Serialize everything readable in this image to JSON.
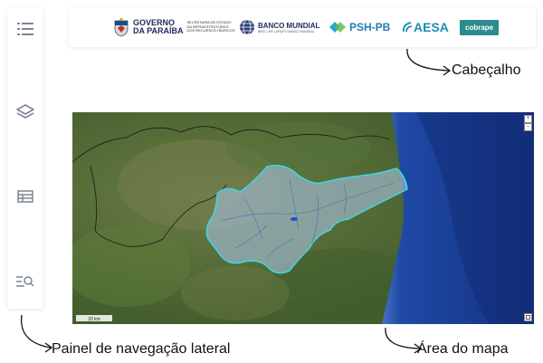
{
  "sidebar": {
    "items": [
      {
        "icon": "list-icon"
      },
      {
        "icon": "layers-icon"
      },
      {
        "icon": "table-icon"
      },
      {
        "icon": "search-list-icon"
      }
    ]
  },
  "header": {
    "logos": {
      "governo_line1": "GOVERNO",
      "governo_line2": "DA PARAÍBA",
      "secretaria_lines": [
        "SECRETARIA DE ESTADO",
        "DA INFRAESTRUTURA E",
        "DOS RECURSOS HÍDRICOS"
      ],
      "banco_mundial": "BANCO MUNDIAL",
      "banco_sub": "BIRD • AIF  |  GRUPO BANCO MUNDIAL",
      "psh": "PSH-PB",
      "aesa": "AESA",
      "cobrape": "cobrape"
    }
  },
  "map": {
    "scale_label": "20 km",
    "zoom_in": "+",
    "zoom_out": "−",
    "colors": {
      "land": "#4f6b38",
      "ocean": "#1b3a8c",
      "basin": "#9db7c9",
      "basin_border": "#3fd6e6"
    }
  },
  "annotations": {
    "header": "Cabeçalho",
    "sidebar": "Painel de navegação lateral",
    "map": "Área do mapa"
  }
}
